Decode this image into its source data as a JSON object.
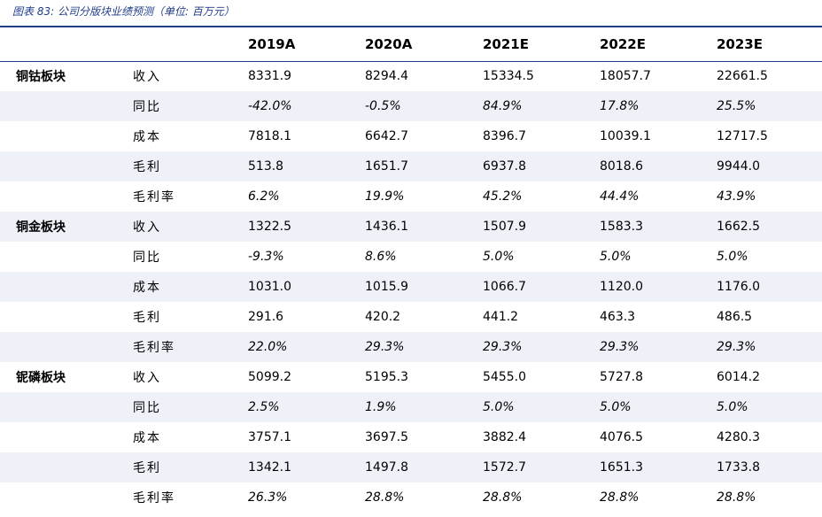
{
  "caption": "图表 83: 公司分版块业绩预测（单位: 百万元）",
  "headers": [
    "",
    "",
    "2019A",
    "2020A",
    "2021E",
    "2022E",
    "2023E"
  ],
  "rows": [
    {
      "segment": "铜钴板块",
      "metric": "收入",
      "pct": false,
      "values": [
        "8331.9",
        "8294.4",
        "15334.5",
        "18057.7",
        "22661.5"
      ]
    },
    {
      "segment": "",
      "metric": "同比",
      "pct": true,
      "values": [
        "-42.0%",
        "-0.5%",
        "84.9%",
        "17.8%",
        "25.5%"
      ]
    },
    {
      "segment": "",
      "metric": "成本",
      "pct": false,
      "values": [
        "7818.1",
        "6642.7",
        "8396.7",
        "10039.1",
        "12717.5"
      ]
    },
    {
      "segment": "",
      "metric": "毛利",
      "pct": false,
      "values": [
        "513.8",
        "1651.7",
        "6937.8",
        "8018.6",
        "9944.0"
      ]
    },
    {
      "segment": "",
      "metric": "毛利率",
      "pct": true,
      "values": [
        "6.2%",
        "19.9%",
        "45.2%",
        "44.4%",
        "43.9%"
      ]
    },
    {
      "segment": "铜金板块",
      "metric": "收入",
      "pct": false,
      "values": [
        "1322.5",
        "1436.1",
        "1507.9",
        "1583.3",
        "1662.5"
      ]
    },
    {
      "segment": "",
      "metric": "同比",
      "pct": true,
      "values": [
        "-9.3%",
        "8.6%",
        "5.0%",
        "5.0%",
        "5.0%"
      ]
    },
    {
      "segment": "",
      "metric": "成本",
      "pct": false,
      "values": [
        "1031.0",
        "1015.9",
        "1066.7",
        "1120.0",
        "1176.0"
      ]
    },
    {
      "segment": "",
      "metric": "毛利",
      "pct": false,
      "values": [
        "291.6",
        "420.2",
        "441.2",
        "463.3",
        "486.5"
      ]
    },
    {
      "segment": "",
      "metric": "毛利率",
      "pct": true,
      "values": [
        "22.0%",
        "29.3%",
        "29.3%",
        "29.3%",
        "29.3%"
      ]
    },
    {
      "segment": "铌磷板块",
      "metric": "收入",
      "pct": false,
      "values": [
        "5099.2",
        "5195.3",
        "5455.0",
        "5727.8",
        "6014.2"
      ]
    },
    {
      "segment": "",
      "metric": "同比",
      "pct": true,
      "values": [
        "2.5%",
        "1.9%",
        "5.0%",
        "5.0%",
        "5.0%"
      ]
    },
    {
      "segment": "",
      "metric": "成本",
      "pct": false,
      "values": [
        "3757.1",
        "3697.5",
        "3882.4",
        "4076.5",
        "4280.3"
      ]
    },
    {
      "segment": "",
      "metric": "毛利",
      "pct": false,
      "values": [
        "1342.1",
        "1497.8",
        "1572.7",
        "1651.3",
        "1733.8"
      ]
    },
    {
      "segment": "",
      "metric": "毛利率",
      "pct": true,
      "values": [
        "26.3%",
        "28.8%",
        "28.8%",
        "28.8%",
        "28.8%"
      ]
    }
  ],
  "colors": {
    "accent": "#1f3c88",
    "row_shade": "#eef2f8"
  }
}
